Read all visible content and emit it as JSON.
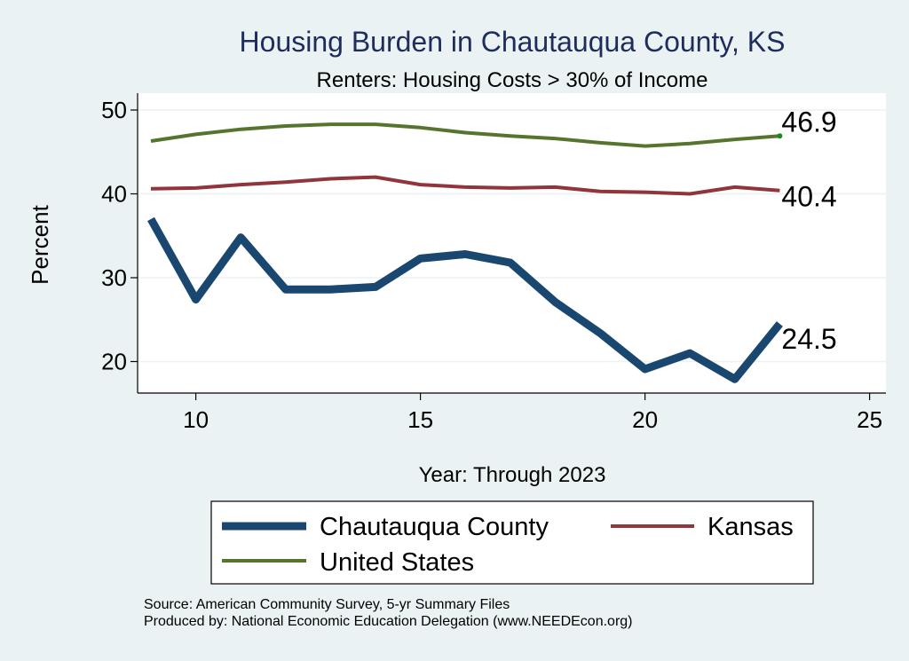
{
  "chart_data": {
    "type": "line",
    "title": "Housing Burden in Chautauqua County, KS",
    "subtitle": "Renters: Housing Costs > 30% of Income",
    "xlabel": "Year: Through 2023",
    "ylabel": "Percent",
    "xlim": [
      8.7,
      25.2
    ],
    "ylim": [
      16.5,
      52
    ],
    "xticks": [
      10,
      15,
      20,
      25
    ],
    "yticks": [
      20,
      30,
      40,
      50
    ],
    "grid": true,
    "legend_position": "bottom",
    "x": [
      9,
      10,
      11,
      12,
      13,
      14,
      15,
      16,
      17,
      18,
      19,
      20,
      21,
      22,
      23
    ],
    "series": [
      {
        "name": "Chautauqua County",
        "color": "#1a476f",
        "values": [
          37,
          27.4,
          34.8,
          28.6,
          28.6,
          28.9,
          32.3,
          32.8,
          31.8,
          27.1,
          23.4,
          19.1,
          21,
          17.9,
          24.5
        ],
        "end_label": "24.5"
      },
      {
        "name": "Kansas",
        "color": "#90353b",
        "values": [
          40.6,
          40.7,
          41.1,
          41.4,
          41.8,
          42,
          41.1,
          40.8,
          40.7,
          40.8,
          40.3,
          40.2,
          40,
          40.8,
          40.4
        ],
        "end_label": "40.4"
      },
      {
        "name": "United States",
        "color": "#55752f",
        "values": [
          46.3,
          47.1,
          47.7,
          48.1,
          48.3,
          48.3,
          47.9,
          47.3,
          46.9,
          46.6,
          46.1,
          45.7,
          46,
          46.5,
          46.9
        ],
        "end_label": "46.9"
      }
    ]
  },
  "source_notes": {
    "line1": "Source: American Community Survey, 5-yr Summary Files",
    "line2": "Produced by: National Economic Education Delegation (www.NEEDEcon.org)"
  }
}
